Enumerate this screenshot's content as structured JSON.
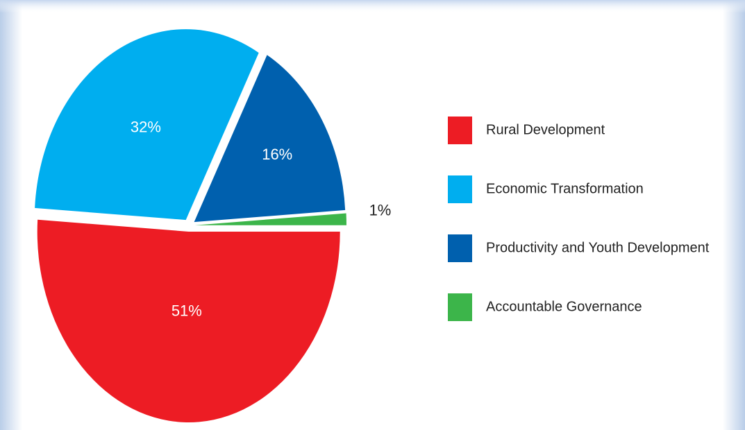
{
  "chart_data": {
    "type": "pie",
    "categories": [
      "Rural Development",
      "Economic Transformation",
      "Productivity and Youth Development",
      "Accountable Governance"
    ],
    "values": [
      51,
      32,
      16,
      1
    ],
    "value_labels": [
      "51%",
      "32%",
      "16%",
      "1%"
    ],
    "colors": [
      "#ed1c24",
      "#00aeef",
      "#0060ae",
      "#3cb54a"
    ],
    "legend": "right"
  }
}
